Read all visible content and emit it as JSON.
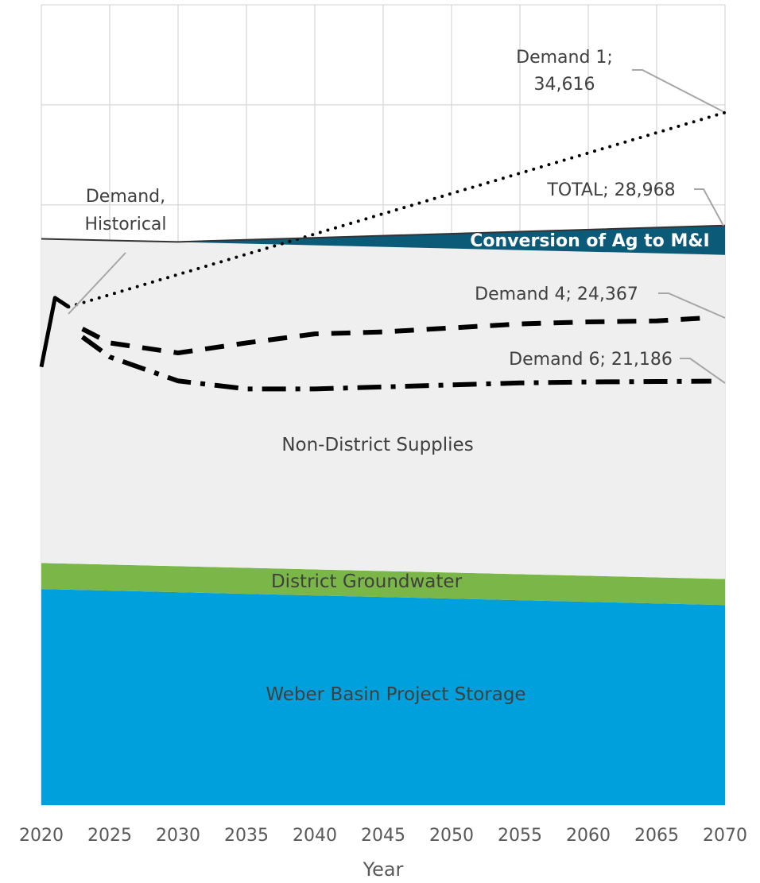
{
  "chart_data": {
    "type": "area",
    "xlabel": "Year",
    "xlim": [
      2020,
      2070
    ],
    "ylim": [
      0,
      40000
    ],
    "grid": true,
    "x_ticks": [
      2020,
      2025,
      2030,
      2035,
      2040,
      2045,
      2050,
      2055,
      2060,
      2065,
      2070
    ],
    "x_tick_labels": [
      "2020",
      "2025",
      "2030",
      "2035",
      "2040",
      "2045",
      "2050",
      "2055",
      "2060",
      "2065",
      "2070"
    ],
    "stacked_areas": [
      {
        "name": "Weber Basin Project Storage",
        "color": "#00A0DC",
        "x": [
          2020,
          2070
        ],
        "values": [
          10800,
          10000
        ]
      },
      {
        "name": "District Groundwater",
        "color": "#7AB648",
        "x": [
          2020,
          2070
        ],
        "values": [
          1300,
          1300
        ]
      },
      {
        "name": "Non-District Supplies",
        "color": "#EFEFEF",
        "x": [
          2020,
          2070
        ],
        "values": [
          16200,
          16200
        ]
      },
      {
        "name": "Conversion of Ag to M&I",
        "color": "#0B5A78",
        "x": [
          2020,
          2030,
          2070
        ],
        "values": [
          0,
          0,
          1468
        ]
      }
    ],
    "lines": [
      {
        "name": "Demand, Historical",
        "style": "solid",
        "x": [
          2020,
          2021,
          2022
        ],
        "values": [
          21900,
          25350,
          24900
        ]
      },
      {
        "name": "Demand 1",
        "style": "dotted",
        "x": [
          2022,
          2070
        ],
        "values": [
          24900,
          34616
        ]
      },
      {
        "name": "Demand 4",
        "style": "dashed",
        "x": [
          2023,
          2025,
          2030,
          2035,
          2040,
          2045,
          2050,
          2055,
          2060,
          2065,
          2069
        ],
        "values": [
          23800,
          23100,
          22600,
          23100,
          23550,
          23650,
          23850,
          24050,
          24150,
          24200,
          24367
        ]
      },
      {
        "name": "Demand 6",
        "style": "dashdot",
        "x": [
          2023,
          2025,
          2030,
          2035,
          2040,
          2045,
          2050,
          2055,
          2060,
          2065,
          2069
        ],
        "values": [
          23400,
          22400,
          21200,
          20800,
          20800,
          20900,
          21000,
          21100,
          21150,
          21170,
          21186
        ]
      },
      {
        "name": "TOTAL",
        "style": "thin",
        "x": [
          2020,
          2030,
          2070
        ],
        "values": [
          28300,
          28150,
          28968
        ]
      }
    ],
    "annotations": {
      "demand1": [
        "Demand 1;",
        "34,616"
      ],
      "total": "TOTAL; 28,968",
      "historical": [
        "Demand,",
        "Historical"
      ],
      "demand4": "Demand 4; 24,367",
      "demand6": "Demand 6; 21,186",
      "conversion": "Conversion of Ag to M&I",
      "non_district": "Non-District Supplies",
      "groundwater": "District Groundwater",
      "storage": "Weber Basin Project Storage"
    }
  }
}
